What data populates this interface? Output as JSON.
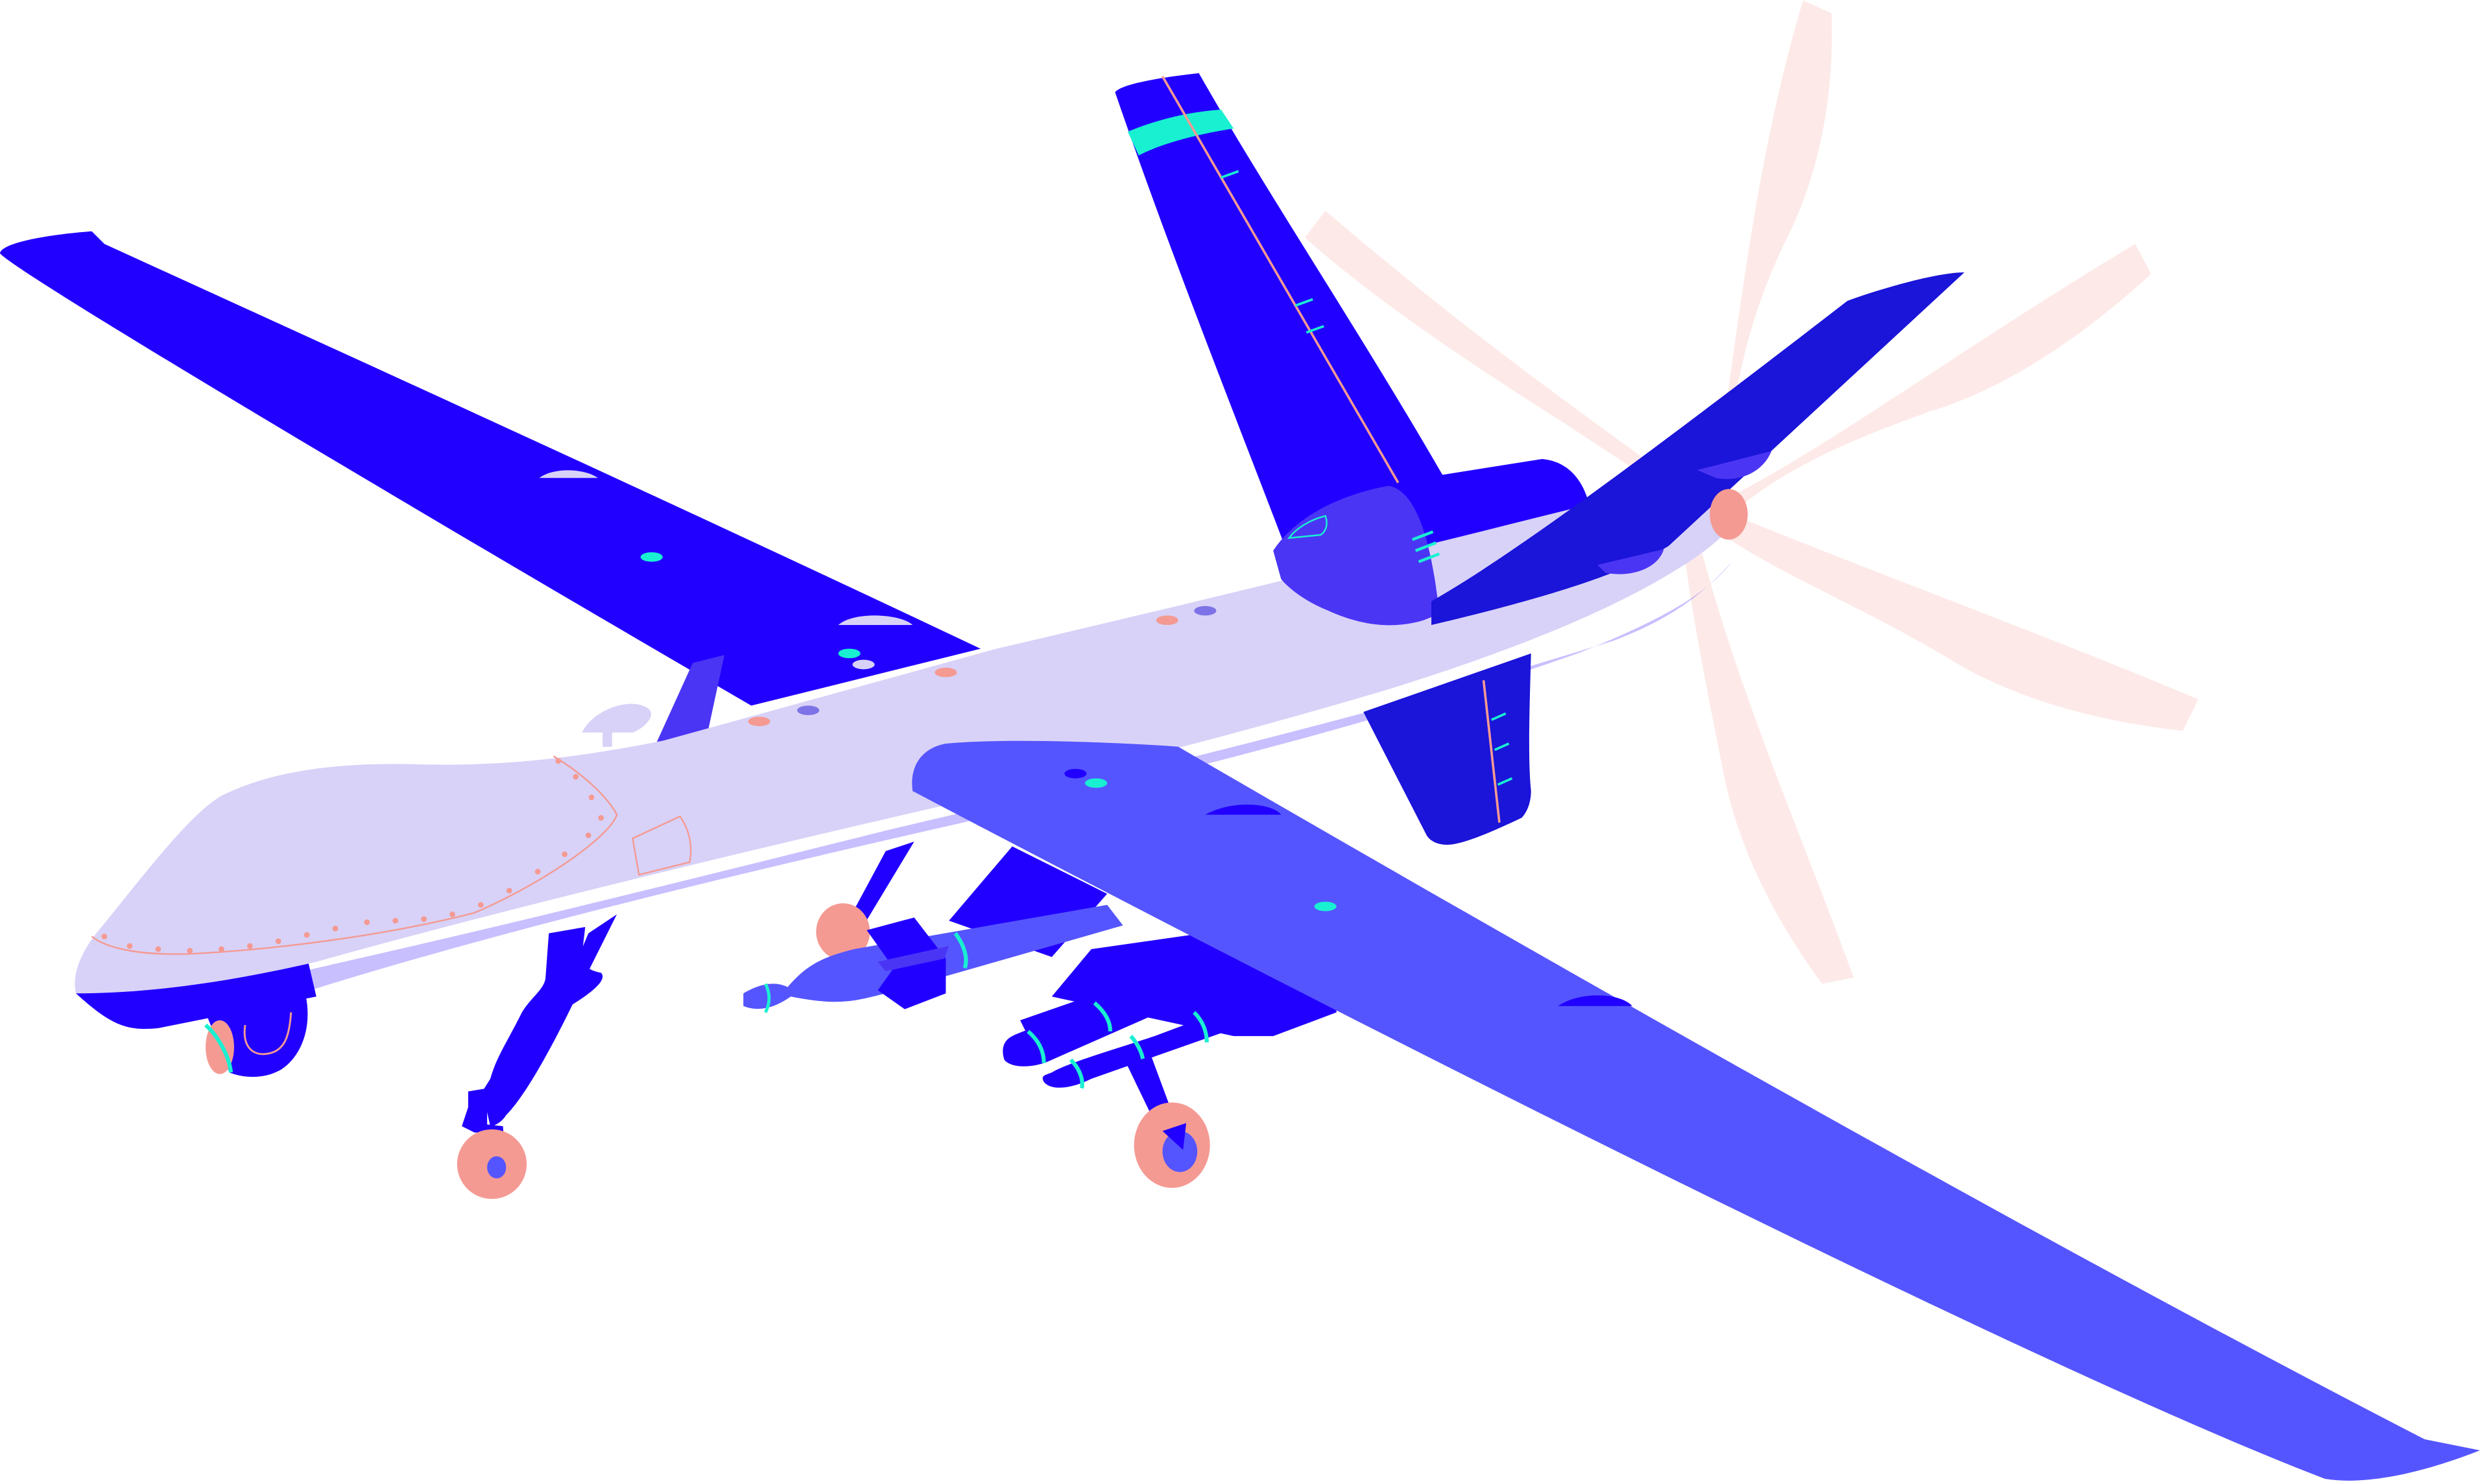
{
  "illustration": {
    "subject": "drone-aircraft",
    "colors": {
      "background": "#ffffff",
      "primary_blue": "#2200ff",
      "dark_blue": "#1b14d9",
      "mid_blue": "#4b35f5",
      "wing_blue": "#5555ff",
      "fuselage": "#d8d2f8",
      "pink": "#f49a93",
      "propeller": "#fdeae8",
      "cyan": "#19f0d2"
    }
  }
}
